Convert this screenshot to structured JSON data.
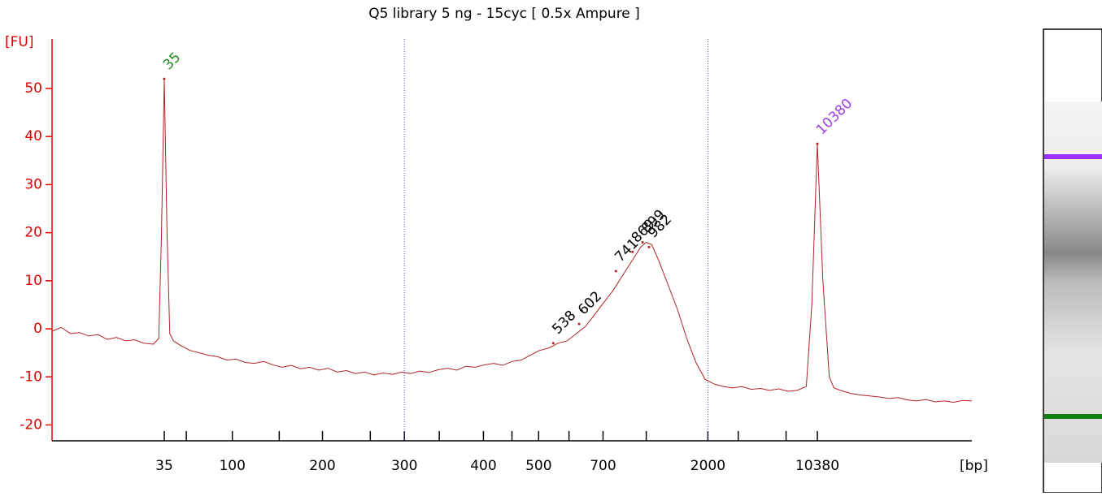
{
  "chart_data": {
    "type": "line",
    "title": "Q5 library 5 ng - 15cyc  [ 0.5x Ampure ]",
    "y_label": "[FU]",
    "x_label": "[bp]",
    "color": "#b22222",
    "axis_color": "#dd0000",
    "xlim": [
      0,
      100
    ],
    "ylim": [
      -23.3,
      60.3
    ],
    "yticks": [
      -20,
      -10,
      0,
      10,
      20,
      30,
      40,
      50
    ],
    "xticks": [
      {
        "value": 12.2,
        "label": "35"
      },
      {
        "value": 14.6,
        "label": null
      },
      {
        "value": 19.6,
        "label": "100"
      },
      {
        "value": 24.7,
        "label": null
      },
      {
        "value": 29.4,
        "label": "200"
      },
      {
        "value": 34.6,
        "label": null
      },
      {
        "value": 38.3,
        "label": "300"
      },
      {
        "value": 42.1,
        "label": null
      },
      {
        "value": 46.9,
        "label": "400"
      },
      {
        "value": 50.0,
        "label": null
      },
      {
        "value": 52.9,
        "label": "500"
      },
      {
        "value": 56.2,
        "label": null
      },
      {
        "value": 59.9,
        "label": "700"
      },
      {
        "value": 64.6,
        "label": null
      },
      {
        "value": 71.3,
        "label": "2000"
      },
      {
        "value": 74.6,
        "label": null
      },
      {
        "value": 79.8,
        "label": null
      },
      {
        "value": 83.2,
        "label": "10380"
      }
    ],
    "marker_lines": [
      38.3,
      71.3
    ],
    "x": [
      0,
      1,
      2,
      3,
      4,
      5,
      6,
      7,
      8,
      9,
      10,
      11,
      11.6,
      11.9,
      12.2,
      12.5,
      12.8,
      13.2,
      14,
      15,
      16,
      17,
      18,
      19,
      20,
      21,
      22,
      23,
      24,
      25,
      26,
      27,
      28,
      29,
      30,
      31,
      32,
      33,
      34,
      35,
      36,
      37,
      38,
      39,
      40,
      41,
      42,
      43,
      44,
      45,
      46,
      47,
      48,
      49,
      50,
      51,
      52,
      53,
      54,
      55,
      56,
      57,
      58,
      59,
      60,
      61,
      62,
      63,
      64,
      64.6,
      65.2,
      66,
      67,
      68,
      69,
      70,
      71,
      72,
      73,
      74,
      75,
      76,
      77,
      78,
      79,
      80,
      81,
      82,
      82.6,
      83.2,
      83.8,
      84.5,
      85,
      86,
      87,
      88,
      89,
      90,
      91,
      92,
      93,
      94,
      95,
      96,
      97,
      98,
      99,
      100
    ],
    "values": [
      -0.5,
      0.3,
      -1,
      -0.8,
      -1.5,
      -1.2,
      -2.2,
      -1.8,
      -2.5,
      -2.3,
      -3,
      -3.2,
      -2,
      20,
      52,
      20,
      -1,
      -2.5,
      -3.5,
      -4.5,
      -5,
      -5.5,
      -5.8,
      -6.5,
      -6.3,
      -7,
      -7.2,
      -6.8,
      -7.5,
      -8,
      -7.6,
      -8.3,
      -8,
      -8.6,
      -8.2,
      -9,
      -8.7,
      -9.3,
      -9,
      -9.6,
      -9.2,
      -9.5,
      -9,
      -9.3,
      -8.8,
      -9.1,
      -8.5,
      -8.2,
      -8.6,
      -7.8,
      -8,
      -7.5,
      -7.2,
      -7.6,
      -6.8,
      -6.5,
      -5.5,
      -4.5,
      -4,
      -3,
      -2.5,
      -1,
      0.5,
      3,
      5.5,
      8,
      11,
      14,
      17,
      18,
      17.5,
      14,
      9,
      4,
      -2,
      -7,
      -10.5,
      -11.5,
      -12,
      -12.3,
      -12,
      -12.6,
      -12.4,
      -12.8,
      -12.5,
      -13,
      -12.8,
      -12,
      5,
      38.5,
      10,
      -10,
      -12.3,
      -13,
      -13.5,
      -13.8,
      -14,
      -14.2,
      -14.5,
      -14.3,
      -14.8,
      -15,
      -14.7,
      -15.2,
      -15,
      -15.3,
      -14.9,
      -15
    ],
    "peaks": [
      {
        "label": "35",
        "x": 12.2,
        "y": 52,
        "color": "#228b22"
      },
      {
        "label": "538",
        "x": 54.5,
        "y": -3,
        "color": "#000000"
      },
      {
        "label": "602",
        "x": 57.3,
        "y": 1,
        "color": "#000000"
      },
      {
        "label": "741",
        "x": 61.3,
        "y": 12,
        "color": "#000000"
      },
      {
        "label": "869",
        "x": 63.1,
        "y": 16,
        "color": "#000000"
      },
      {
        "label": "899",
        "x": 64.2,
        "y": 18,
        "color": "#000000"
      },
      {
        "label": "982",
        "x": 64.9,
        "y": 17,
        "color": "#000000"
      },
      {
        "label": "10380",
        "x": 83.2,
        "y": 38.5,
        "color": "#a040e0"
      }
    ]
  }
}
